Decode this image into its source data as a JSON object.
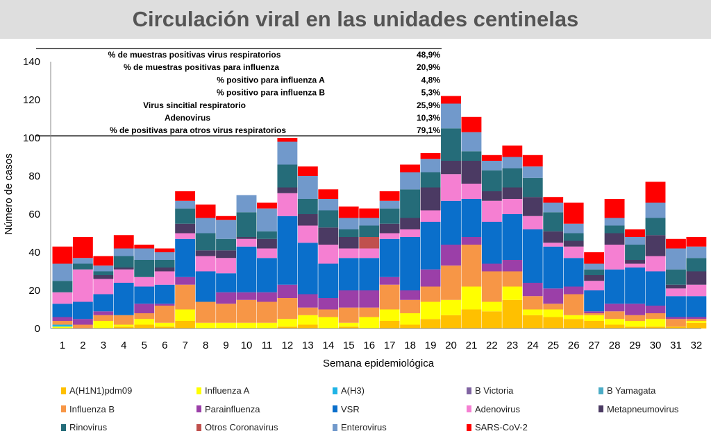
{
  "title": "Circulación viral en las unidades centinelas",
  "summary_table": [
    {
      "label": "% de muestras positivas virus respiratorios",
      "value": "48,9%"
    },
    {
      "label": "% de muestras positivas para influenza",
      "value": "20,9%"
    },
    {
      "label": "% positivo para influenza A",
      "value": "4,8%"
    },
    {
      "label": "% positivo para influenza B",
      "value": "5,3%"
    },
    {
      "label": "Virus sincitial respiratorio",
      "value": "25,9%"
    },
    {
      "label": "Adenovirus",
      "value": "10,3%"
    },
    {
      "label": "% de positivas para otros virus respiratorios",
      "value": "79,1%"
    }
  ],
  "chart_data": {
    "type": "bar",
    "stacked": true,
    "xlabel": "Semana epidemiológica",
    "ylabel": "Número de casos",
    "ylim": [
      0,
      140
    ],
    "yticks": [
      0,
      20,
      40,
      60,
      80,
      100,
      120,
      140
    ],
    "grid": false,
    "legend_placement": "bottom",
    "categories": [
      "1",
      "2",
      "3",
      "4",
      "5",
      "6",
      "7",
      "8",
      "9",
      "10",
      "11",
      "12",
      "13",
      "14",
      "15",
      "16",
      "17",
      "18",
      "19",
      "20",
      "21",
      "22",
      "23",
      "24",
      "25",
      "26",
      "27",
      "28",
      "29",
      "30",
      "31",
      "32"
    ],
    "series": [
      {
        "name": "A(H1N1)pdm09",
        "color": "#FFC000",
        "values": [
          0,
          0,
          0,
          1,
          2,
          1,
          4,
          0,
          0,
          0,
          0,
          1,
          2,
          0,
          1,
          0,
          4,
          2,
          5,
          7,
          10,
          9,
          15,
          7,
          6,
          5,
          4,
          2,
          1,
          1,
          1,
          3
        ]
      },
      {
        "name": "Influenza A",
        "color": "#FFFF00",
        "values": [
          1,
          0,
          4,
          1,
          3,
          2,
          6,
          3,
          3,
          3,
          3,
          4,
          5,
          6,
          2,
          6,
          6,
          6,
          9,
          8,
          12,
          5,
          7,
          3,
          4,
          2,
          3,
          3,
          3,
          4,
          0,
          1
        ]
      },
      {
        "name": "A(H3)",
        "color": "#1FB4E6",
        "values": [
          1,
          0,
          0,
          0,
          0,
          0,
          0,
          0,
          0,
          0,
          0,
          0,
          0,
          0,
          0,
          0,
          0,
          0,
          0,
          0,
          0,
          0,
          0,
          0,
          0,
          0,
          0,
          0,
          0,
          0,
          0,
          0
        ]
      },
      {
        "name": "B Victoria",
        "color": "#8064A2",
        "values": [
          0,
          0,
          0,
          0,
          0,
          0,
          0,
          0,
          0,
          0,
          0,
          0,
          0,
          0,
          0,
          0,
          0,
          0,
          0,
          0,
          0,
          0,
          0,
          0,
          0,
          0,
          0,
          0,
          0,
          0,
          0,
          0
        ]
      },
      {
        "name": "B Yamagata",
        "color": "#4BACC6",
        "values": [
          0,
          0,
          0,
          0,
          0,
          0,
          0,
          0,
          0,
          0,
          0,
          0,
          0,
          0,
          0,
          0,
          0,
          0,
          0,
          0,
          0,
          0,
          0,
          0,
          0,
          0,
          0,
          0,
          0,
          0,
          0,
          0
        ]
      },
      {
        "name": "Influenza B",
        "color": "#F79646",
        "values": [
          2,
          2,
          3,
          5,
          3,
          9,
          13,
          11,
          10,
          12,
          11,
          11,
          4,
          4,
          8,
          5,
          13,
          7,
          8,
          18,
          22,
          16,
          8,
          7,
          3,
          11,
          1,
          4,
          3,
          3,
          4,
          1
        ]
      },
      {
        "name": "Parainfluenza",
        "color": "#9B3FA8",
        "values": [
          2,
          3,
          2,
          0,
          5,
          1,
          4,
          0,
          6,
          4,
          5,
          7,
          7,
          6,
          9,
          9,
          4,
          5,
          9,
          11,
          4,
          4,
          6,
          7,
          8,
          4,
          1,
          4,
          6,
          4,
          1,
          1
        ]
      },
      {
        "name": "VSR",
        "color": "#0A6FCB",
        "values": [
          7,
          9,
          9,
          17,
          9,
          10,
          20,
          16,
          10,
          24,
          18,
          36,
          27,
          18,
          17,
          17,
          20,
          28,
          25,
          23,
          20,
          22,
          24,
          28,
          22,
          15,
          11,
          18,
          19,
          18,
          11,
          11
        ]
      },
      {
        "name": "Adenovirus",
        "color": "#F57FD2",
        "values": [
          6,
          17,
          8,
          7,
          5,
          7,
          3,
          8,
          8,
          4,
          5,
          12,
          9,
          10,
          5,
          5,
          3,
          4,
          6,
          14,
          8,
          11,
          8,
          7,
          2,
          6,
          5,
          13,
          2,
          8,
          4,
          6
        ]
      },
      {
        "name": "Otros Coronavirus",
        "color": "#C0504D",
        "values": [
          0,
          0,
          0,
          0,
          0,
          0,
          0,
          0,
          0,
          0,
          0,
          0,
          0,
          0,
          0,
          6,
          0,
          0,
          0,
          0,
          0,
          0,
          0,
          0,
          0,
          0,
          0,
          0,
          0,
          0,
          0,
          0
        ]
      },
      {
        "name": "Metapneumovirus",
        "color": "#4B3A63",
        "values": [
          0,
          0,
          2,
          1,
          0,
          2,
          5,
          3,
          4,
          1,
          5,
          3,
          6,
          9,
          6,
          0,
          5,
          6,
          12,
          7,
          12,
          5,
          6,
          10,
          6,
          3,
          3,
          6,
          2,
          11,
          2,
          7
        ]
      },
      {
        "name": "Rinovirus",
        "color": "#256C79",
        "values": [
          6,
          3,
          2,
          6,
          9,
          4,
          8,
          9,
          6,
          13,
          4,
          12,
          8,
          9,
          4,
          6,
          8,
          15,
          8,
          17,
          5,
          11,
          10,
          10,
          10,
          4,
          3,
          4,
          8,
          9,
          8,
          7
        ]
      },
      {
        "name": "Enterovirus",
        "color": "#7199CB",
        "values": [
          9,
          3,
          3,
          4,
          6,
          4,
          4,
          8,
          10,
          9,
          12,
          12,
          12,
          6,
          6,
          4,
          4,
          9,
          7,
          13,
          10,
          5,
          6,
          6,
          5,
          5,
          3,
          4,
          4,
          8,
          11,
          6
        ]
      },
      {
        "name": "SARS-CoV-2",
        "color": "#FF0000",
        "values": [
          9,
          11,
          5,
          7,
          2,
          2,
          5,
          7,
          2,
          0,
          3,
          2,
          5,
          5,
          6,
          5,
          5,
          4,
          3,
          4,
          8,
          3,
          6,
          6,
          3,
          11,
          6,
          10,
          4,
          11,
          5,
          5
        ]
      }
    ],
    "legend_order": [
      "A(H1N1)pdm09",
      "Influenza A",
      "A(H3)",
      "B Victoria",
      "B Yamagata",
      "Influenza B",
      "Parainfluenza",
      "VSR",
      "Adenovirus",
      "Metapneumovirus",
      "Rinovirus",
      "Otros Coronavirus",
      "Enterovirus",
      "SARS-CoV-2"
    ]
  }
}
